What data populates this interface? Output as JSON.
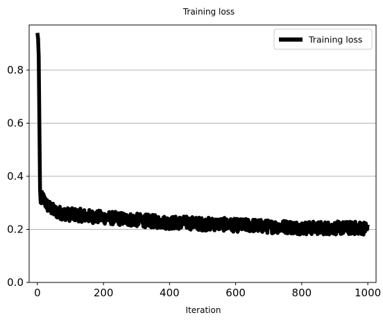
{
  "chart_data": {
    "type": "line",
    "title": "Training loss",
    "xlabel": "Iteration",
    "ylabel": "",
    "xlim": [
      -25,
      1025
    ],
    "ylim": [
      0,
      0.97
    ],
    "xticks": [
      0,
      200,
      400,
      600,
      800,
      1000
    ],
    "yticks": [
      0.0,
      0.2,
      0.4,
      0.6,
      0.8
    ],
    "xtick_labels": [
      "0",
      "200",
      "400",
      "600",
      "800",
      "1000"
    ],
    "ytick_labels": [
      "0.0",
      "0.2",
      "0.4",
      "0.6",
      "0.8"
    ],
    "grid": "y-axis only",
    "legend_position": "top-right",
    "series": [
      {
        "name": "Training loss",
        "color": "#000000",
        "x": [
          0,
          2,
          4,
          6,
          8,
          10,
          15,
          20,
          25,
          30,
          40,
          50,
          60,
          80,
          100,
          120,
          150,
          200,
          250,
          300,
          350,
          400,
          450,
          500,
          550,
          600,
          650,
          700,
          750,
          800,
          850,
          900,
          950,
          1000
        ],
        "y": [
          0.94,
          0.92,
          0.85,
          0.6,
          0.35,
          0.3,
          0.32,
          0.31,
          0.3,
          0.29,
          0.28,
          0.27,
          0.265,
          0.26,
          0.255,
          0.255,
          0.25,
          0.245,
          0.24,
          0.235,
          0.23,
          0.225,
          0.225,
          0.22,
          0.22,
          0.215,
          0.215,
          0.21,
          0.21,
          0.205,
          0.205,
          0.205,
          0.205,
          0.205
        ],
        "noise_band": 0.025
      }
    ]
  }
}
